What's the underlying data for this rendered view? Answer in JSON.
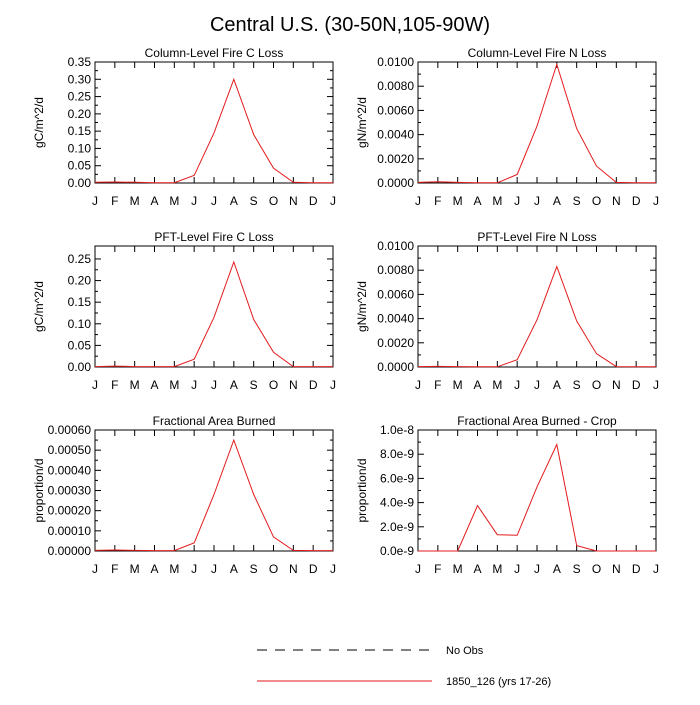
{
  "title": "Central U.S. (30-50N,105-90W)",
  "legend": {
    "entries": [
      {
        "label": "No Obs",
        "style": "dashed",
        "color": "#000000"
      },
      {
        "label": "1850_126 (yrs 17-26)",
        "style": "solid",
        "color": "#e31a1c"
      }
    ]
  },
  "chart_data": [
    {
      "type": "line",
      "title": "Column-Level Fire C Loss",
      "ylabel": "gC/m^2/d",
      "xlabel": "",
      "x": [
        "J",
        "F",
        "M",
        "A",
        "M",
        "J",
        "J",
        "A",
        "S",
        "O",
        "N",
        "D",
        "J"
      ],
      "ylim": [
        0,
        0.35
      ],
      "yticks": [
        0,
        0.05,
        0.1,
        0.15,
        0.2,
        0.25,
        0.3,
        0.35
      ],
      "ytick_labels": [
        "0.00",
        "0.05",
        "0.10",
        "0.15",
        "0.20",
        "0.25",
        "0.30",
        "0.35"
      ],
      "series": [
        {
          "name": "1850_126 (yrs 17-26)",
          "color": "#e31a1c",
          "values": [
            0.002,
            0.003,
            0.002,
            0.001,
            0.001,
            0.022,
            0.145,
            0.3,
            0.14,
            0.043,
            0.002,
            0.001,
            0.001
          ]
        }
      ]
    },
    {
      "type": "line",
      "title": "Column-Level Fire N Loss",
      "ylabel": "gN/m^2/d",
      "xlabel": "",
      "x": [
        "J",
        "F",
        "M",
        "A",
        "M",
        "J",
        "J",
        "A",
        "S",
        "O",
        "N",
        "D",
        "J"
      ],
      "ylim": [
        0,
        0.01
      ],
      "yticks": [
        0,
        0.002,
        0.004,
        0.006,
        0.008,
        0.01
      ],
      "ytick_labels": [
        "0.0000",
        "0.0020",
        "0.0040",
        "0.0060",
        "0.0080",
        "0.0100"
      ],
      "series": [
        {
          "name": "1850_126 (yrs 17-26)",
          "color": "#e31a1c",
          "values": [
            5e-05,
            0.0001,
            5e-05,
            2e-05,
            2e-05,
            0.0007,
            0.0047,
            0.0098,
            0.0045,
            0.0014,
            5e-05,
            2e-05,
            2e-05
          ]
        }
      ]
    },
    {
      "type": "line",
      "title": "PFT-Level Fire C Loss",
      "ylabel": "gC/m^2/d",
      "xlabel": "",
      "x": [
        "J",
        "F",
        "M",
        "A",
        "M",
        "J",
        "J",
        "A",
        "S",
        "O",
        "N",
        "D",
        "J"
      ],
      "ylim": [
        0,
        0.28
      ],
      "yticks": [
        0,
        0.05,
        0.1,
        0.15,
        0.2,
        0.25
      ],
      "ytick_labels": [
        "0.00",
        "0.05",
        "0.10",
        "0.15",
        "0.20",
        "0.25"
      ],
      "series": [
        {
          "name": "1850_126 (yrs 17-26)",
          "color": "#e31a1c",
          "values": [
            0.001,
            0.002,
            0.001,
            0.001,
            0.001,
            0.018,
            0.115,
            0.243,
            0.11,
            0.034,
            0.001,
            0.001,
            0.001
          ]
        }
      ]
    },
    {
      "type": "line",
      "title": "PFT-Level Fire N Loss",
      "ylabel": "gN/m^2/d",
      "xlabel": "",
      "x": [
        "J",
        "F",
        "M",
        "A",
        "M",
        "J",
        "J",
        "A",
        "S",
        "O",
        "N",
        "D",
        "J"
      ],
      "ylim": [
        0,
        0.01
      ],
      "yticks": [
        0,
        0.002,
        0.004,
        0.006,
        0.008,
        0.01
      ],
      "ytick_labels": [
        "0.0000",
        "0.0020",
        "0.0040",
        "0.0060",
        "0.0080",
        "0.0100"
      ],
      "series": [
        {
          "name": "1850_126 (yrs 17-26)",
          "color": "#e31a1c",
          "values": [
            3e-05,
            5e-05,
            3e-05,
            2e-05,
            2e-05,
            0.0006,
            0.0039,
            0.0083,
            0.0038,
            0.0011,
            3e-05,
            2e-05,
            2e-05
          ]
        }
      ]
    },
    {
      "type": "line",
      "title": "Fractional Area Burned",
      "ylabel": "proportion/d",
      "xlabel": "",
      "x": [
        "J",
        "F",
        "M",
        "A",
        "M",
        "J",
        "J",
        "A",
        "S",
        "O",
        "N",
        "D",
        "J"
      ],
      "ylim": [
        0,
        0.0006
      ],
      "yticks": [
        0,
        0.0001,
        0.0002,
        0.0003,
        0.0004,
        0.0005,
        0.0006
      ],
      "ytick_labels": [
        "0.00000",
        "0.00010",
        "0.00020",
        "0.00030",
        "0.00040",
        "0.00050",
        "0.00060"
      ],
      "series": [
        {
          "name": "1850_126 (yrs 17-26)",
          "color": "#e31a1c",
          "values": [
            3e-06,
            5e-06,
            3e-06,
            2e-06,
            2e-06,
            4e-05,
            0.00028,
            0.00055,
            0.00028,
            7e-05,
            3e-06,
            2e-06,
            2e-06
          ]
        }
      ]
    },
    {
      "type": "line",
      "title": "Fractional Area Burned - Crop",
      "ylabel": "proportion/d",
      "xlabel": "",
      "x": [
        "J",
        "F",
        "M",
        "A",
        "M",
        "J",
        "J",
        "A",
        "S",
        "O",
        "N",
        "D",
        "J"
      ],
      "ylim": [
        0,
        1e-08
      ],
      "yticks": [
        0,
        2e-09,
        4e-09,
        6e-09,
        8e-09,
        1e-08
      ],
      "ytick_labels": [
        "0.0e-9",
        "2.0e-9",
        "4.0e-9",
        "6.0e-9",
        "8.0e-9",
        "1.0e-8"
      ],
      "series": [
        {
          "name": "1850_126 (yrs 17-26)",
          "color": "#e31a1c",
          "values": [
            0,
            0,
            0,
            3.75e-09,
            1.35e-09,
            1.3e-09,
            5.3e-09,
            8.8e-09,
            4.5e-10,
            0,
            0,
            0,
            0
          ]
        }
      ]
    }
  ]
}
